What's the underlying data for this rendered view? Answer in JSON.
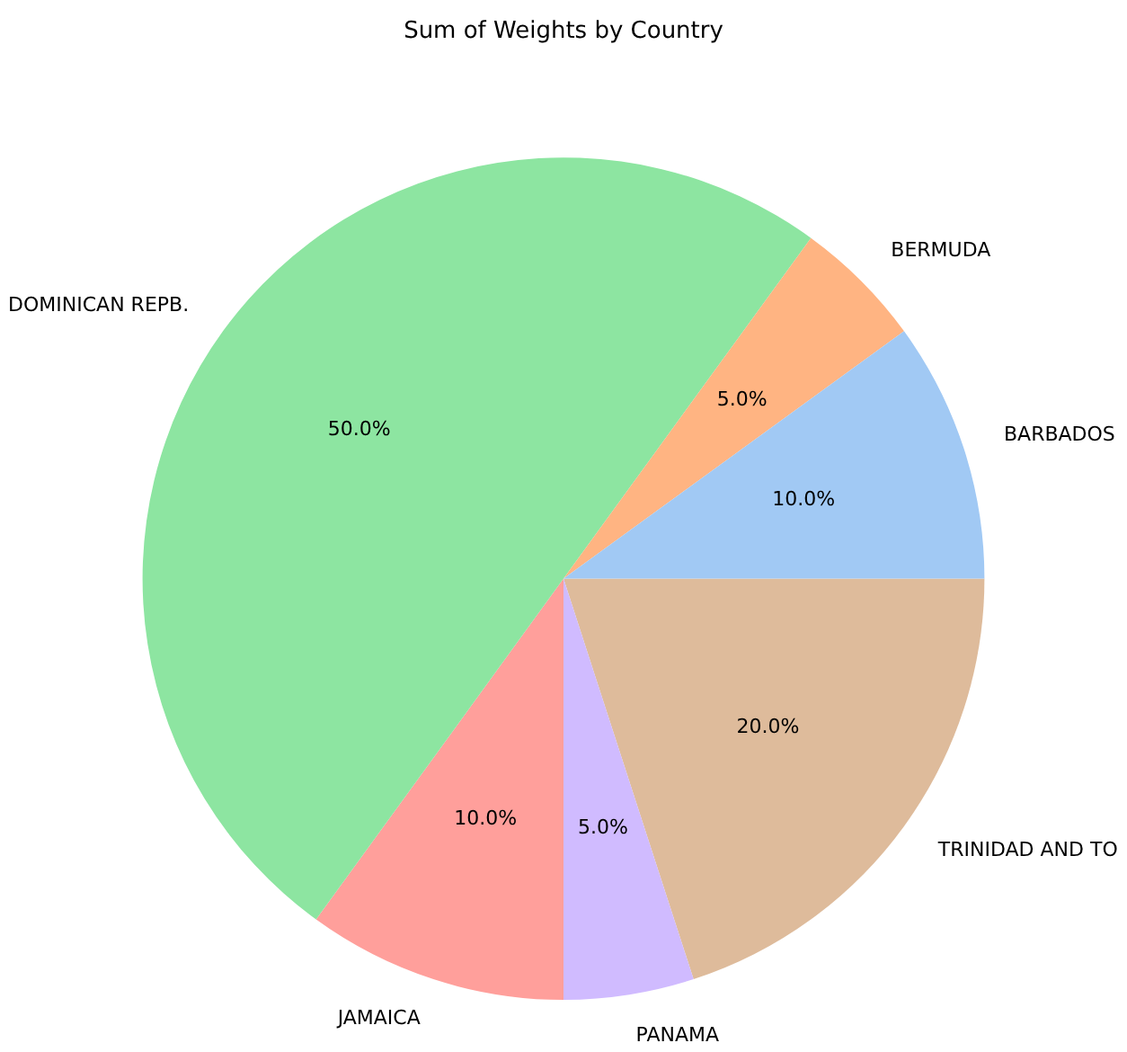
{
  "chart_data": {
    "type": "pie",
    "title": "Sum of Weights by Country",
    "categories": [
      "BARBADOS",
      "BERMUDA",
      "DOMINICAN REPB.",
      "JAMAICA",
      "PANAMA",
      "TRINIDAD AND TO"
    ],
    "values": [
      10,
      5,
      50,
      10,
      5,
      20
    ],
    "colors": [
      "#a1c9f4",
      "#ffb482",
      "#8de5a1",
      "#ff9f9b",
      "#d0bbff",
      "#debb9b"
    ],
    "value_labels": [
      "10.0%",
      "5.0%",
      "50.0%",
      "10.0%",
      "5.0%",
      "20.0%"
    ],
    "legend": false
  }
}
